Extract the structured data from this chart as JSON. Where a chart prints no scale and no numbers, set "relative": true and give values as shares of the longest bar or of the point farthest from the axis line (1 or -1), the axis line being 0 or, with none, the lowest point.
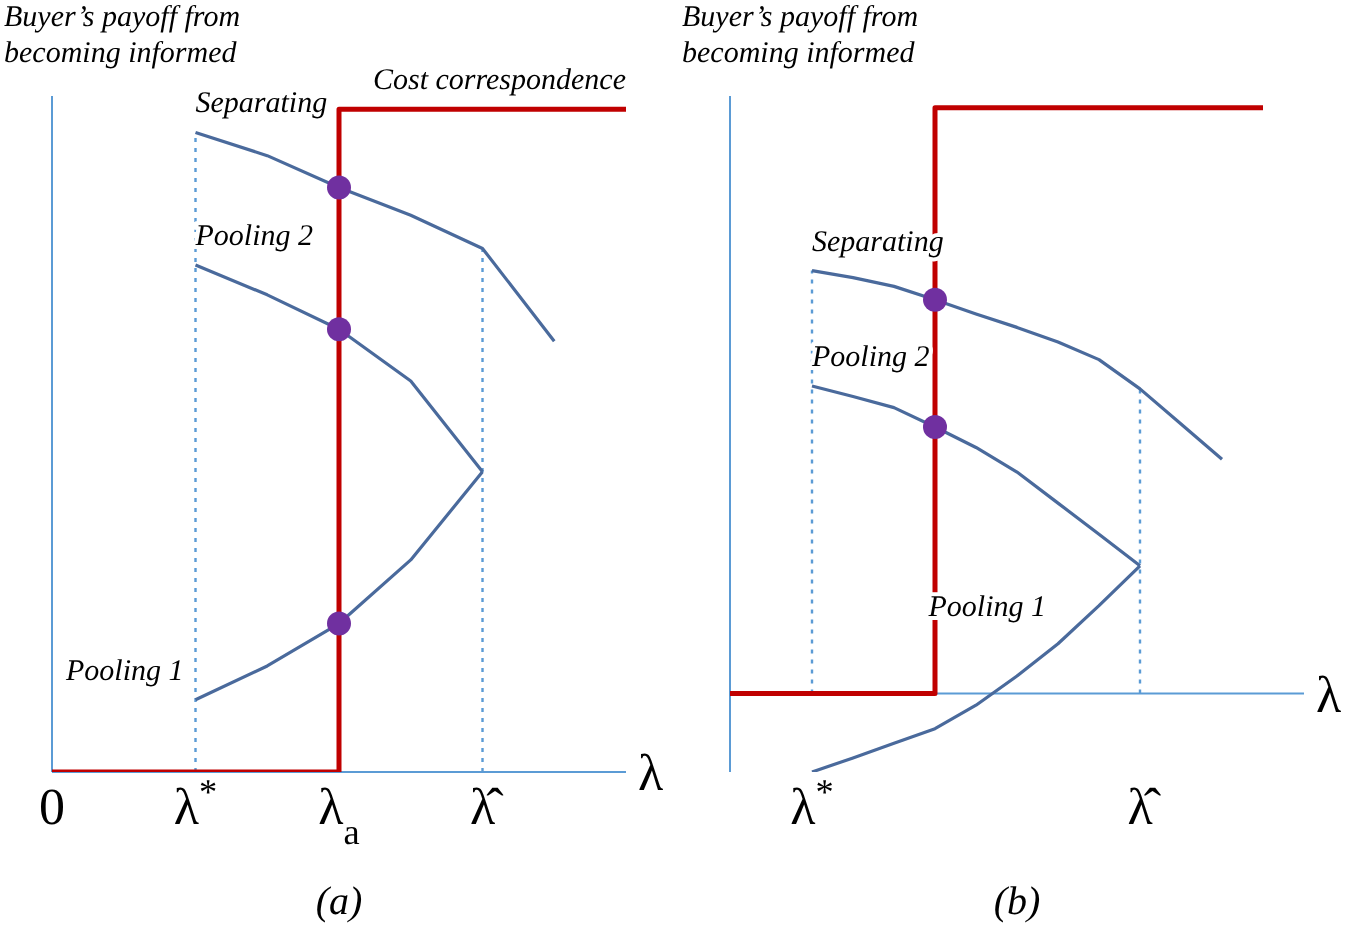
{
  "chart_data": [
    {
      "type": "line",
      "title": "(a)",
      "ylabel": "Buyer’s payoff from becoming informed",
      "xlabel": "λ",
      "relative": true,
      "marker": "none",
      "categories": [
        "0",
        null,
        "λ$^{*}$",
        null,
        "λ$_{a}$",
        null,
        "λ̂",
        null,
        null
      ],
      "series": [
        {
          "name": "Cost correspondence",
          "type": "step",
          "color": "#c00000",
          "values": [
            0,
            0,
            0,
            0,
            1,
            1,
            1,
            1,
            1
          ]
        },
        {
          "name": "Separating",
          "color": "#4a6a9c",
          "values": [
            null,
            null,
            0.965,
            0.93,
            0.882,
            0.84,
            0.79,
            0.65,
            null
          ]
        },
        {
          "name": "Pooling 2",
          "color": "#4a6a9c",
          "values": [
            null,
            null,
            0.765,
            0.72,
            0.668,
            0.59,
            0.453,
            null,
            null
          ]
        },
        {
          "name": "Pooling 1",
          "color": "#4a6a9c",
          "values": [
            null,
            null,
            0.109,
            0.16,
            0.224,
            0.32,
            0.453,
            null,
            null
          ]
        },
        {
          "type": "scatter",
          "marker": "circle",
          "color": "#7030a0",
          "values": [
            null,
            null,
            null,
            null,
            0.882,
            null,
            null,
            null,
            null
          ]
        },
        {
          "type": "scatter",
          "marker": "circle",
          "color": "#7030a0",
          "values": [
            null,
            null,
            null,
            null,
            0.668,
            null,
            null,
            null,
            null
          ]
        },
        {
          "type": "scatter",
          "marker": "circle",
          "color": "#7030a0",
          "values": [
            null,
            null,
            null,
            null,
            0.224,
            null,
            null,
            null,
            null
          ]
        }
      ],
      "ref_lines": [
        {
          "axis": "x",
          "value": "λ$^{*}$",
          "color": "#5b9bd5",
          "line_style": "dotted"
        },
        {
          "axis": "x",
          "value": "λ̂",
          "color": "#5b9bd5",
          "line_style": "dotted"
        }
      ]
    },
    {
      "type": "line",
      "title": "(b)",
      "ylabel": "Buyer’s payoff from becoming informed",
      "xlabel": "λ",
      "relative": true,
      "marker": "none",
      "categories": [
        null,
        null,
        "λ$^{*}$",
        null,
        null,
        null,
        null,
        null,
        null,
        null,
        "λ̂",
        null,
        null,
        null,
        null
      ],
      "series": [
        {
          "type": "step",
          "color": "#c00000",
          "values": [
            0,
            0,
            0,
            0,
            0,
            1,
            1,
            1,
            1,
            1,
            1,
            1,
            1,
            1,
            null
          ]
        },
        {
          "name": "Separating",
          "color": "#4a6a9c",
          "values": [
            null,
            null,
            0.722,
            0.71,
            0.695,
            0.672,
            0.648,
            0.625,
            0.6,
            0.57,
            0.52,
            0.46,
            0.4,
            null,
            null
          ]
        },
        {
          "name": "Pooling 2",
          "color": "#4a6a9c",
          "values": [
            null,
            null,
            0.525,
            0.507,
            0.488,
            0.455,
            0.42,
            0.378,
            0.325,
            0.272,
            0.218,
            null,
            null,
            null,
            null
          ]
        },
        {
          "name": "Pooling 1",
          "color": "#4a6a9c",
          "values": [
            null,
            null,
            -0.134,
            -0.11,
            -0.085,
            -0.06,
            -0.02,
            0.03,
            0.085,
            0.15,
            0.218,
            null,
            null,
            null,
            null
          ]
        },
        {
          "type": "scatter",
          "marker": "circle",
          "color": "#7030a0",
          "values": [
            null,
            null,
            null,
            null,
            null,
            0.672,
            null,
            null,
            null,
            null,
            null,
            null,
            null,
            null,
            null
          ]
        },
        {
          "type": "scatter",
          "marker": "circle",
          "color": "#7030a0",
          "values": [
            null,
            null,
            null,
            null,
            null,
            0.455,
            null,
            null,
            null,
            null,
            null,
            null,
            null,
            null,
            null
          ]
        }
      ],
      "ref_lines": [
        {
          "axis": "x",
          "value": "λ$^{*}$",
          "color": "#5b9bd5",
          "line_style": "dotted"
        },
        {
          "axis": "x",
          "value": "λ̂",
          "color": "#5b9bd5",
          "line_style": "dotted"
        }
      ]
    }
  ]
}
